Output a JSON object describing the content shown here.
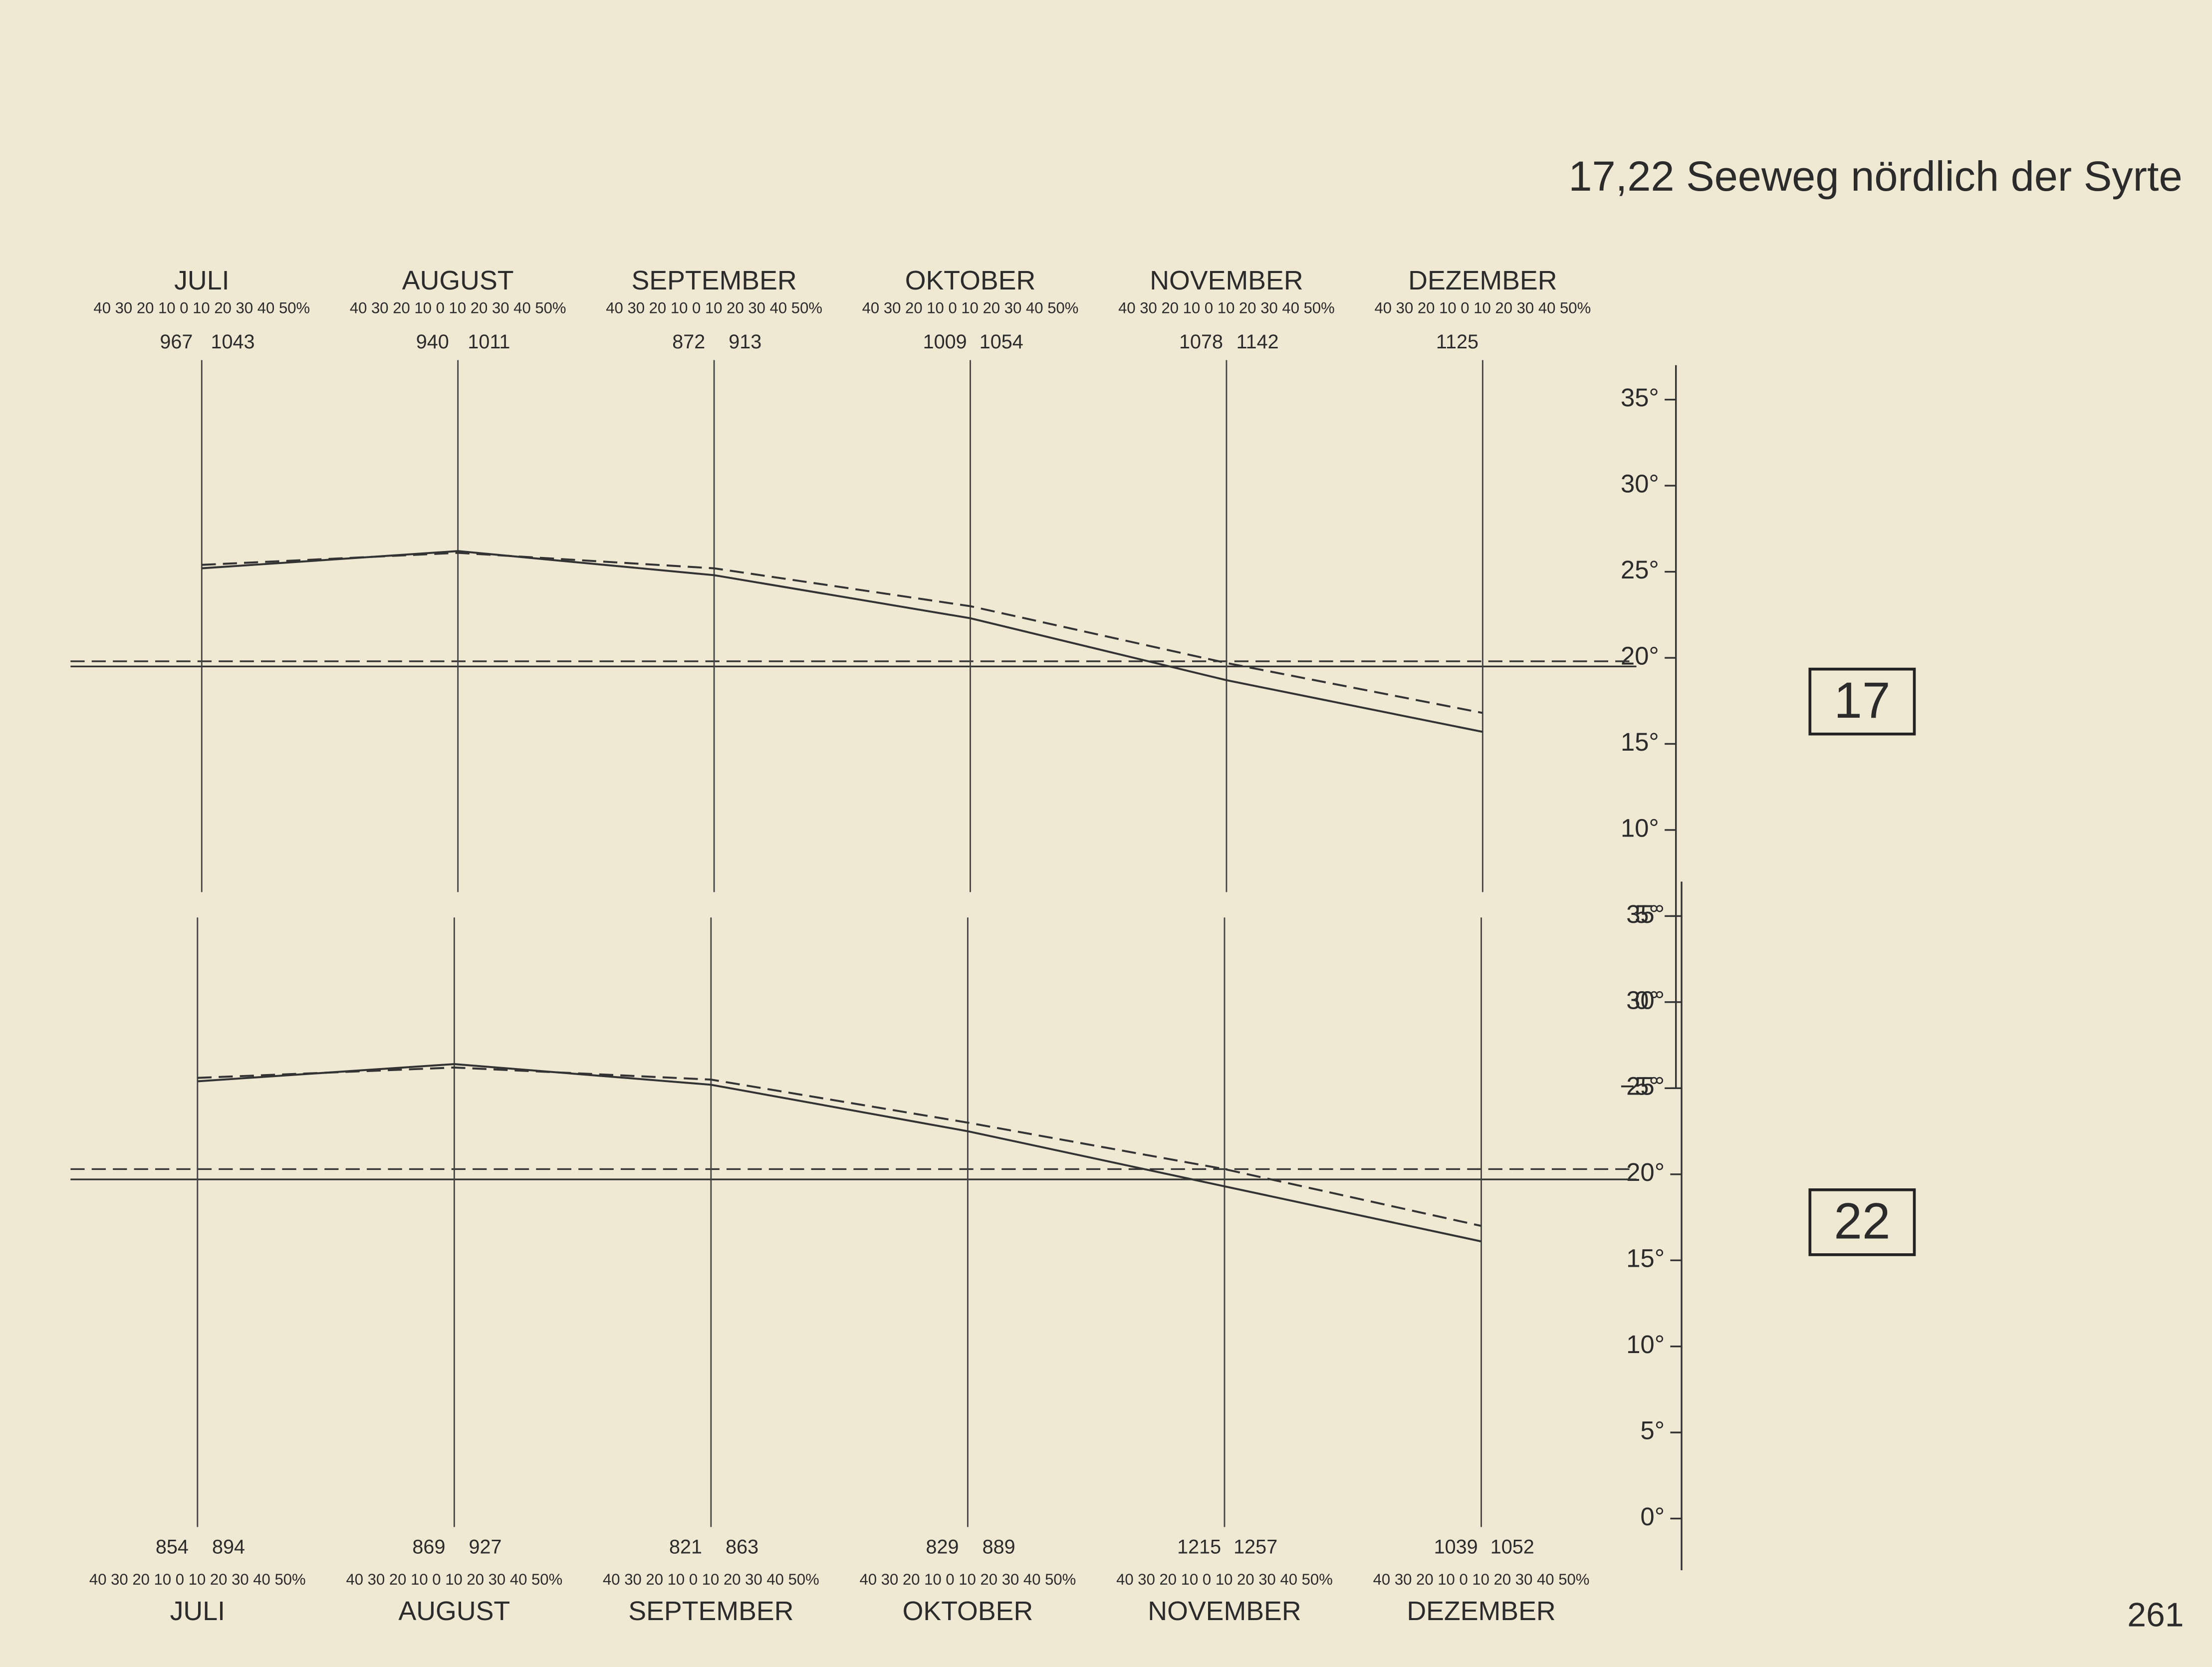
{
  "header": {
    "title": "17,22 Seeweg nördlich der Syrte",
    "page_number": "261"
  },
  "chart_data": [
    {
      "type": "line",
      "label": "17",
      "categories": [
        "JULI",
        "AUGUST",
        "SEPTEMBER",
        "OKTOBER",
        "NOVEMBER",
        "DEZEMBER"
      ],
      "percent_scale": [
        "40",
        "30",
        "20",
        "10",
        "0",
        "10",
        "20",
        "30",
        "40",
        "50%"
      ],
      "counts": [
        [
          967,
          1043
        ],
        [
          940,
          1011
        ],
        [
          872,
          913
        ],
        [
          1009,
          1054
        ],
        [
          1078,
          1142
        ],
        [
          1125,
          null
        ]
      ],
      "series": [
        {
          "color": "#333333",
          "dash": false,
          "values": [
            25.2,
            26.2,
            24.8,
            22.3,
            18.7,
            15.7
          ]
        },
        {
          "color": "#333333",
          "dash": true,
          "values": [
            25.4,
            26.1,
            25.2,
            23.0,
            19.7,
            16.8
          ]
        }
      ],
      "reference_lines": [
        {
          "color": "#333333",
          "dash": false,
          "value": 19.5
        },
        {
          "color": "#333333",
          "dash": true,
          "value": 19.8
        }
      ],
      "ylim": [
        -5,
        37
      ],
      "yticks": [
        {
          "value": 35,
          "label": "35°"
        },
        {
          "value": 30,
          "label": "30°"
        },
        {
          "value": 25,
          "label": "25°"
        },
        {
          "value": 20,
          "label": "20°"
        },
        {
          "value": 15,
          "label": "15°"
        },
        {
          "value": 10,
          "label": "10°"
        },
        {
          "value": 5,
          "label": "5°"
        },
        {
          "value": 0,
          "label": "0°"
        },
        {
          "value": -5,
          "label": "−5°"
        }
      ]
    },
    {
      "type": "line",
      "label": "22",
      "categories": [
        "JULI",
        "AUGUST",
        "SEPTEMBER",
        "OKTOBER",
        "NOVEMBER",
        "DEZEMBER"
      ],
      "percent_scale": [
        "40",
        "30",
        "20",
        "10",
        "0",
        "10",
        "20",
        "30",
        "40",
        "50%"
      ],
      "counts": [
        [
          854,
          894
        ],
        [
          869,
          927
        ],
        [
          821,
          863
        ],
        [
          829,
          889
        ],
        [
          1215,
          1257
        ],
        [
          1039,
          1052
        ]
      ],
      "series": [
        {
          "color": "#333333",
          "dash": false,
          "values": [
            25.4,
            26.4,
            25.2,
            22.5,
            19.3,
            16.1
          ]
        },
        {
          "color": "#333333",
          "dash": true,
          "values": [
            25.6,
            26.2,
            25.5,
            23.0,
            20.3,
            17.0
          ]
        }
      ],
      "reference_lines": [
        {
          "color": "#333333",
          "dash": false,
          "value": 19.7
        },
        {
          "color": "#333333",
          "dash": true,
          "value": 20.3
        }
      ],
      "ylim": [
        -3,
        37
      ],
      "yticks": [
        {
          "value": 35,
          "label": "35°"
        },
        {
          "value": 30,
          "label": "30°"
        },
        {
          "value": 25,
          "label": "25°"
        },
        {
          "value": 20,
          "label": "20°"
        },
        {
          "value": 15,
          "label": "15°"
        },
        {
          "value": 10,
          "label": "10°"
        },
        {
          "value": 5,
          "label": "5°"
        },
        {
          "value": 0,
          "label": "0°"
        }
      ]
    }
  ]
}
